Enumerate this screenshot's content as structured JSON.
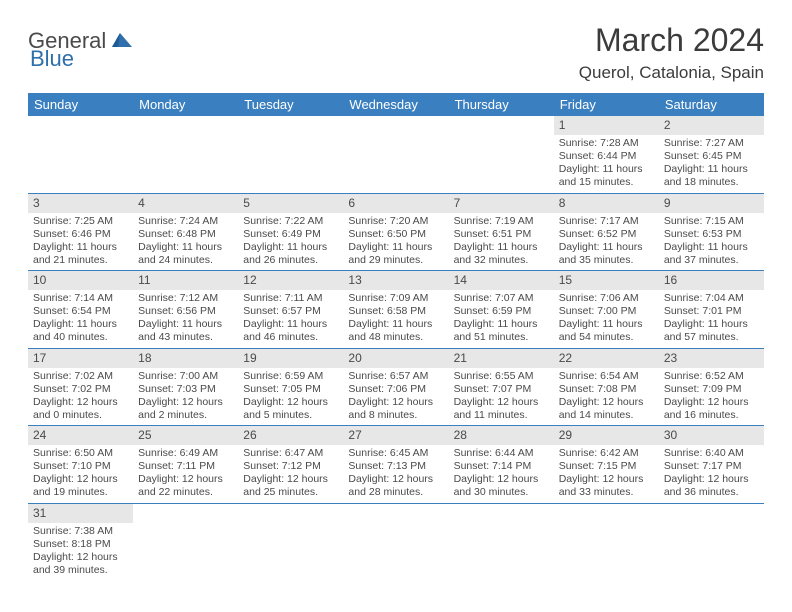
{
  "brand": {
    "general": "General",
    "blue": "Blue"
  },
  "title": "March 2024",
  "location": "Querol, Catalonia, Spain",
  "colors": {
    "header_bg": "#3a7fc0",
    "header_fg": "#ffffff",
    "daynum_bg": "#e7e7e7",
    "row_border": "#3a7fc0",
    "text": "#4a4a4a",
    "background": "#ffffff"
  },
  "weekdays": [
    "Sunday",
    "Monday",
    "Tuesday",
    "Wednesday",
    "Thursday",
    "Friday",
    "Saturday"
  ],
  "weeks": [
    [
      null,
      null,
      null,
      null,
      null,
      {
        "n": "1",
        "sr": "Sunrise: 7:28 AM",
        "ss": "Sunset: 6:44 PM",
        "dl": "Daylight: 11 hours and 15 minutes."
      },
      {
        "n": "2",
        "sr": "Sunrise: 7:27 AM",
        "ss": "Sunset: 6:45 PM",
        "dl": "Daylight: 11 hours and 18 minutes."
      }
    ],
    [
      {
        "n": "3",
        "sr": "Sunrise: 7:25 AM",
        "ss": "Sunset: 6:46 PM",
        "dl": "Daylight: 11 hours and 21 minutes."
      },
      {
        "n": "4",
        "sr": "Sunrise: 7:24 AM",
        "ss": "Sunset: 6:48 PM",
        "dl": "Daylight: 11 hours and 24 minutes."
      },
      {
        "n": "5",
        "sr": "Sunrise: 7:22 AM",
        "ss": "Sunset: 6:49 PM",
        "dl": "Daylight: 11 hours and 26 minutes."
      },
      {
        "n": "6",
        "sr": "Sunrise: 7:20 AM",
        "ss": "Sunset: 6:50 PM",
        "dl": "Daylight: 11 hours and 29 minutes."
      },
      {
        "n": "7",
        "sr": "Sunrise: 7:19 AM",
        "ss": "Sunset: 6:51 PM",
        "dl": "Daylight: 11 hours and 32 minutes."
      },
      {
        "n": "8",
        "sr": "Sunrise: 7:17 AM",
        "ss": "Sunset: 6:52 PM",
        "dl": "Daylight: 11 hours and 35 minutes."
      },
      {
        "n": "9",
        "sr": "Sunrise: 7:15 AM",
        "ss": "Sunset: 6:53 PM",
        "dl": "Daylight: 11 hours and 37 minutes."
      }
    ],
    [
      {
        "n": "10",
        "sr": "Sunrise: 7:14 AM",
        "ss": "Sunset: 6:54 PM",
        "dl": "Daylight: 11 hours and 40 minutes."
      },
      {
        "n": "11",
        "sr": "Sunrise: 7:12 AM",
        "ss": "Sunset: 6:56 PM",
        "dl": "Daylight: 11 hours and 43 minutes."
      },
      {
        "n": "12",
        "sr": "Sunrise: 7:11 AM",
        "ss": "Sunset: 6:57 PM",
        "dl": "Daylight: 11 hours and 46 minutes."
      },
      {
        "n": "13",
        "sr": "Sunrise: 7:09 AM",
        "ss": "Sunset: 6:58 PM",
        "dl": "Daylight: 11 hours and 48 minutes."
      },
      {
        "n": "14",
        "sr": "Sunrise: 7:07 AM",
        "ss": "Sunset: 6:59 PM",
        "dl": "Daylight: 11 hours and 51 minutes."
      },
      {
        "n": "15",
        "sr": "Sunrise: 7:06 AM",
        "ss": "Sunset: 7:00 PM",
        "dl": "Daylight: 11 hours and 54 minutes."
      },
      {
        "n": "16",
        "sr": "Sunrise: 7:04 AM",
        "ss": "Sunset: 7:01 PM",
        "dl": "Daylight: 11 hours and 57 minutes."
      }
    ],
    [
      {
        "n": "17",
        "sr": "Sunrise: 7:02 AM",
        "ss": "Sunset: 7:02 PM",
        "dl": "Daylight: 12 hours and 0 minutes."
      },
      {
        "n": "18",
        "sr": "Sunrise: 7:00 AM",
        "ss": "Sunset: 7:03 PM",
        "dl": "Daylight: 12 hours and 2 minutes."
      },
      {
        "n": "19",
        "sr": "Sunrise: 6:59 AM",
        "ss": "Sunset: 7:05 PM",
        "dl": "Daylight: 12 hours and 5 minutes."
      },
      {
        "n": "20",
        "sr": "Sunrise: 6:57 AM",
        "ss": "Sunset: 7:06 PM",
        "dl": "Daylight: 12 hours and 8 minutes."
      },
      {
        "n": "21",
        "sr": "Sunrise: 6:55 AM",
        "ss": "Sunset: 7:07 PM",
        "dl": "Daylight: 12 hours and 11 minutes."
      },
      {
        "n": "22",
        "sr": "Sunrise: 6:54 AM",
        "ss": "Sunset: 7:08 PM",
        "dl": "Daylight: 12 hours and 14 minutes."
      },
      {
        "n": "23",
        "sr": "Sunrise: 6:52 AM",
        "ss": "Sunset: 7:09 PM",
        "dl": "Daylight: 12 hours and 16 minutes."
      }
    ],
    [
      {
        "n": "24",
        "sr": "Sunrise: 6:50 AM",
        "ss": "Sunset: 7:10 PM",
        "dl": "Daylight: 12 hours and 19 minutes."
      },
      {
        "n": "25",
        "sr": "Sunrise: 6:49 AM",
        "ss": "Sunset: 7:11 PM",
        "dl": "Daylight: 12 hours and 22 minutes."
      },
      {
        "n": "26",
        "sr": "Sunrise: 6:47 AM",
        "ss": "Sunset: 7:12 PM",
        "dl": "Daylight: 12 hours and 25 minutes."
      },
      {
        "n": "27",
        "sr": "Sunrise: 6:45 AM",
        "ss": "Sunset: 7:13 PM",
        "dl": "Daylight: 12 hours and 28 minutes."
      },
      {
        "n": "28",
        "sr": "Sunrise: 6:44 AM",
        "ss": "Sunset: 7:14 PM",
        "dl": "Daylight: 12 hours and 30 minutes."
      },
      {
        "n": "29",
        "sr": "Sunrise: 6:42 AM",
        "ss": "Sunset: 7:15 PM",
        "dl": "Daylight: 12 hours and 33 minutes."
      },
      {
        "n": "30",
        "sr": "Sunrise: 6:40 AM",
        "ss": "Sunset: 7:17 PM",
        "dl": "Daylight: 12 hours and 36 minutes."
      }
    ],
    [
      {
        "n": "31",
        "sr": "Sunrise: 7:38 AM",
        "ss": "Sunset: 8:18 PM",
        "dl": "Daylight: 12 hours and 39 minutes."
      },
      null,
      null,
      null,
      null,
      null,
      null
    ]
  ]
}
